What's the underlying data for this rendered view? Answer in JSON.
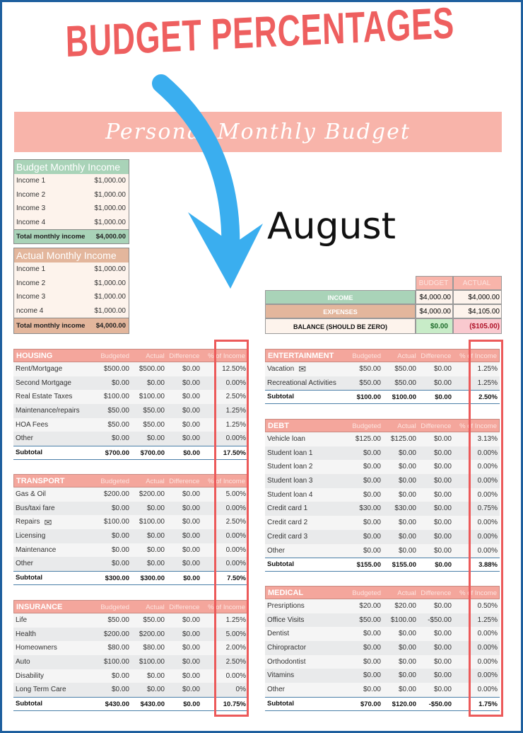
{
  "title": "BUDGET PERCENTAGES",
  "banner": "Personal Monthly Budget",
  "month": "August",
  "colors": {
    "accent": "#ee5f5f",
    "header": "#f4a69c",
    "green": "#a9d3b8",
    "tan": "#e3b69c",
    "arrow": "#3aaeef"
  },
  "budget_income": {
    "title": "Budget Monthly Income",
    "rows": [
      [
        "Income 1",
        "$1,000.00"
      ],
      [
        "Income 2",
        "$1,000.00"
      ],
      [
        "Income 3",
        "$1,000.00"
      ],
      [
        "Income 4",
        "$1,000.00"
      ]
    ],
    "total_label": "Total monthly income",
    "total": "$4,000.00"
  },
  "actual_income": {
    "title": "Actual Monthly Income",
    "rows": [
      [
        "Income 1",
        "$1,000.00"
      ],
      [
        "Income 2",
        "$1,000.00"
      ],
      [
        "Income 3",
        "$1,000.00"
      ],
      [
        "ncome 4",
        "$1,000.00"
      ]
    ],
    "total_label": "Total monthly income",
    "total": "$4,000.00"
  },
  "summary": {
    "budget_label": "BUDGET",
    "actual_label": "ACTUAL",
    "income_label": "INCOME",
    "income_budget": "$4,000.00",
    "income_actual": "$4,000.00",
    "expenses_label": "EXPENSES",
    "expenses_budget": "$4,000.00",
    "expenses_actual": "$4,105.00",
    "balance_label": "BALANCE (SHOULD BE ZERO)",
    "balance_budget": "$0.00",
    "balance_actual": "($105.00)"
  },
  "columns": [
    "Budgeted",
    "Actual",
    "Difference",
    "% of Income"
  ],
  "sections": [
    {
      "name": "HOUSING",
      "rows": [
        [
          "Rent/Mortgage",
          "$500.00",
          "$500.00",
          "$0.00",
          "12.50%"
        ],
        [
          "Second Mortgage",
          "$0.00",
          "$0.00",
          "$0.00",
          "0.00%"
        ],
        [
          "Real Estate Taxes",
          "$100.00",
          "$100.00",
          "$0.00",
          "2.50%"
        ],
        [
          "Maintenance/repairs",
          "$50.00",
          "$50.00",
          "$0.00",
          "1.25%"
        ],
        [
          "HOA Fees",
          "$50.00",
          "$50.00",
          "$0.00",
          "1.25%"
        ],
        [
          "Other",
          "$0.00",
          "$0.00",
          "$0.00",
          "0.00%"
        ]
      ],
      "subtotal": [
        "Subtotal",
        "$700.00",
        "$700.00",
        "$0.00",
        "17.50%"
      ]
    },
    {
      "name": "TRANSPORT",
      "rows": [
        [
          "Gas & Oil",
          "$200.00",
          "$200.00",
          "$0.00",
          "5.00%"
        ],
        [
          "Bus/taxi fare",
          "$0.00",
          "$0.00",
          "$0.00",
          "0.00%"
        ],
        [
          "Repairs",
          "$100.00",
          "$100.00",
          "$0.00",
          "2.50%"
        ],
        [
          "Licensing",
          "$0.00",
          "$0.00",
          "$0.00",
          "0.00%"
        ],
        [
          "Maintenance",
          "$0.00",
          "$0.00",
          "$0.00",
          "0.00%"
        ],
        [
          "Other",
          "$0.00",
          "$0.00",
          "$0.00",
          "0.00%"
        ]
      ],
      "subtotal": [
        "Subtotal",
        "$300.00",
        "$300.00",
        "$0.00",
        "7.50%"
      ]
    },
    {
      "name": "INSURANCE",
      "rows": [
        [
          "Life",
          "$50.00",
          "$50.00",
          "$0.00",
          "1.25%"
        ],
        [
          "Health",
          "$200.00",
          "$200.00",
          "$0.00",
          "5.00%"
        ],
        [
          "Homeowners",
          "$80.00",
          "$80.00",
          "$0.00",
          "2.00%"
        ],
        [
          "Auto",
          "$100.00",
          "$100.00",
          "$0.00",
          "2.50%"
        ],
        [
          "Disability",
          "$0.00",
          "$0.00",
          "$0.00",
          "0.00%"
        ],
        [
          "Long Term Care",
          "$0.00",
          "$0.00",
          "$0.00",
          "0%"
        ]
      ],
      "subtotal": [
        "Subtotal",
        "$430.00",
        "$430.00",
        "$0.00",
        "10.75%"
      ]
    },
    {
      "name": "ENTERTAINMENT",
      "rows": [
        [
          "Vacation",
          "$50.00",
          "$50.00",
          "$0.00",
          "1.25%"
        ],
        [
          "Recreational Activities",
          "$50.00",
          "$50.00",
          "$0.00",
          "1.25%"
        ]
      ],
      "subtotal": [
        "Subtotal",
        "$100.00",
        "$100.00",
        "$0.00",
        "2.50%"
      ]
    },
    {
      "name": "DEBT",
      "rows": [
        [
          "Vehicle loan",
          "$125.00",
          "$125.00",
          "$0.00",
          "3.13%"
        ],
        [
          "Student loan 1",
          "$0.00",
          "$0.00",
          "$0.00",
          "0.00%"
        ],
        [
          "Student loan 2",
          "$0.00",
          "$0.00",
          "$0.00",
          "0.00%"
        ],
        [
          "Student loan 3",
          "$0.00",
          "$0.00",
          "$0.00",
          "0.00%"
        ],
        [
          "Student loan 4",
          "$0.00",
          "$0.00",
          "$0.00",
          "0.00%"
        ],
        [
          "Credit card 1",
          "$30.00",
          "$30.00",
          "$0.00",
          "0.75%"
        ],
        [
          "Credit card 2",
          "$0.00",
          "$0.00",
          "$0.00",
          "0.00%"
        ],
        [
          "Credit card 3",
          "$0.00",
          "$0.00",
          "$0.00",
          "0.00%"
        ],
        [
          "Other",
          "$0.00",
          "$0.00",
          "$0.00",
          "0.00%"
        ]
      ],
      "subtotal": [
        "Subtotal",
        "$155.00",
        "$155.00",
        "$0.00",
        "3.88%"
      ]
    },
    {
      "name": "MEDICAL",
      "rows": [
        [
          "Presriptions",
          "$20.00",
          "$20.00",
          "$0.00",
          "0.50%"
        ],
        [
          "Office Visits",
          "$50.00",
          "$100.00",
          "-$50.00",
          "1.25%"
        ],
        [
          "Dentist",
          "$0.00",
          "$0.00",
          "$0.00",
          "0.00%"
        ],
        [
          "Chiropractor",
          "$0.00",
          "$0.00",
          "$0.00",
          "0.00%"
        ],
        [
          "Orthodontist",
          "$0.00",
          "$0.00",
          "$0.00",
          "0.00%"
        ],
        [
          "Vitamins",
          "$0.00",
          "$0.00",
          "$0.00",
          "0.00%"
        ],
        [
          "Other",
          "$0.00",
          "$0.00",
          "$0.00",
          "0.00%"
        ]
      ],
      "subtotal": [
        "Subtotal",
        "$70.00",
        "$120.00",
        "-$50.00",
        "1.75%"
      ]
    }
  ]
}
